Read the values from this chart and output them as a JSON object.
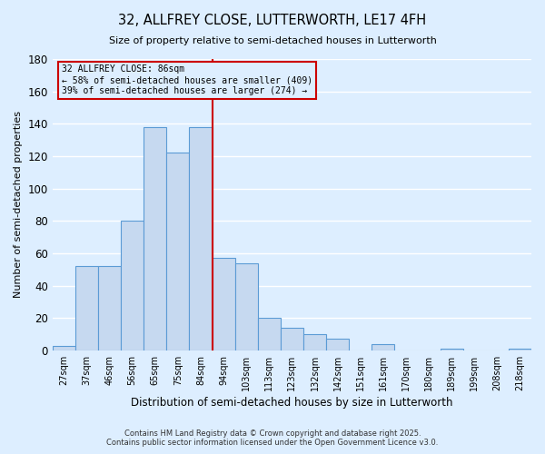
{
  "title": "32, ALLFREY CLOSE, LUTTERWORTH, LE17 4FH",
  "subtitle": "Size of property relative to semi-detached houses in Lutterworth",
  "xlabel": "Distribution of semi-detached houses by size in Lutterworth",
  "ylabel": "Number of semi-detached properties",
  "bar_labels": [
    "27sqm",
    "37sqm",
    "46sqm",
    "56sqm",
    "65sqm",
    "75sqm",
    "84sqm",
    "94sqm",
    "103sqm",
    "113sqm",
    "123sqm",
    "132sqm",
    "142sqm",
    "151sqm",
    "161sqm",
    "170sqm",
    "180sqm",
    "189sqm",
    "199sqm",
    "208sqm",
    "218sqm"
  ],
  "bar_values": [
    3,
    52,
    52,
    80,
    138,
    122,
    138,
    57,
    54,
    20,
    14,
    10,
    7,
    0,
    4,
    0,
    0,
    1,
    0,
    0,
    1
  ],
  "bar_color": "#c6d9f0",
  "bar_edge_color": "#5b9bd5",
  "background_color": "#ddeeff",
  "grid_color": "#ffffff",
  "vline_color": "#cc0000",
  "annotation_title": "32 ALLFREY CLOSE: 86sqm",
  "annotation_line1": "← 58% of semi-detached houses are smaller (409)",
  "annotation_line2": "39% of semi-detached houses are larger (274) →",
  "annotation_box_edge": "#cc0000",
  "ylim": [
    0,
    180
  ],
  "yticks": [
    0,
    20,
    40,
    60,
    80,
    100,
    120,
    140,
    160,
    180
  ],
  "footer1": "Contains HM Land Registry data © Crown copyright and database right 2025.",
  "footer2": "Contains public sector information licensed under the Open Government Licence v3.0."
}
